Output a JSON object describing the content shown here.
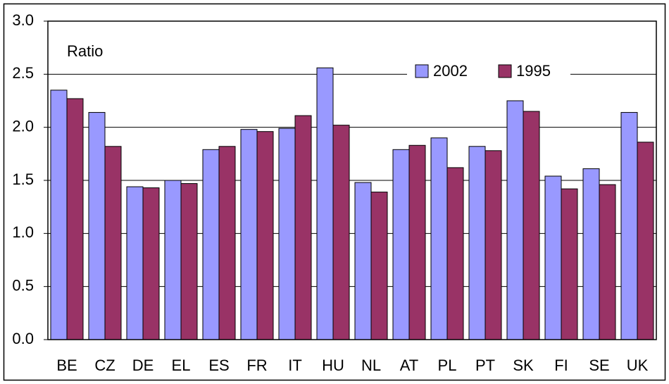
{
  "chart_data": {
    "type": "bar",
    "y_label": "Ratio",
    "categories": [
      "BE",
      "CZ",
      "DE",
      "EL",
      "ES",
      "FR",
      "IT",
      "HU",
      "NL",
      "AT",
      "PL",
      "PT",
      "SK",
      "FI",
      "SE",
      "UK"
    ],
    "series": [
      {
        "name": "2002",
        "color": "#9999ff",
        "values": [
          2.35,
          2.14,
          1.44,
          1.5,
          1.79,
          1.98,
          1.99,
          2.56,
          1.48,
          1.79,
          1.9,
          1.82,
          2.25,
          1.54,
          1.61,
          2.14
        ]
      },
      {
        "name": "1995",
        "color": "#993366",
        "values": [
          2.27,
          1.82,
          1.43,
          1.47,
          1.82,
          1.96,
          2.11,
          2.02,
          1.39,
          1.83,
          1.62,
          1.78,
          2.15,
          1.42,
          1.46,
          1.86
        ]
      }
    ],
    "ylim": [
      0,
      3
    ],
    "yticks": [
      {
        "value": 0,
        "label": "0.0"
      },
      0.5,
      {
        "value": 1,
        "label": "1.0"
      },
      1.5,
      {
        "value": 2,
        "label": "2.0"
      },
      2.5,
      {
        "value": 3,
        "label": "3.0"
      }
    ],
    "grid": true
  }
}
